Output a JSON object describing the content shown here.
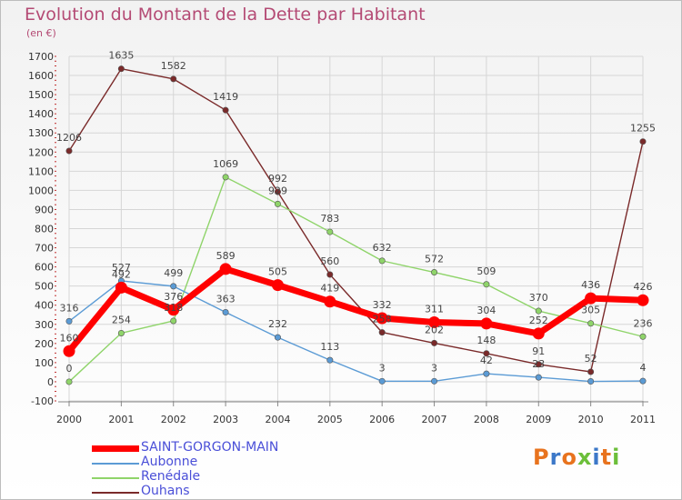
{
  "title": "Evolution du Montant de la Dette par Habitant",
  "subtitle": "(en €)",
  "logo": "Proxiti",
  "logo_colors": [
    "#e8731e",
    "#3c78c8",
    "#e8731e",
    "#6cbf3a",
    "#3c78c8",
    "#e8731e",
    "#6cbf3a"
  ],
  "chart_data": {
    "type": "line",
    "x": [
      "2000",
      "2001",
      "2002",
      "2003",
      "2004",
      "2005",
      "2006",
      "2007",
      "2008",
      "2009",
      "2010",
      "2011"
    ],
    "ylim": [
      -100,
      1700
    ],
    "yticks": [
      "-100",
      "0",
      "100",
      "200",
      "300",
      "400",
      "500",
      "600",
      "700",
      "800",
      "900",
      "1000",
      "1100",
      "1200",
      "1300",
      "1400",
      "1500",
      "1600",
      "1700"
    ],
    "grid": true,
    "legend_position": "bottom-left",
    "series": [
      {
        "name": "SAINT-GORGON-MAIN",
        "color": "#ff0000",
        "values": [
          160,
          492,
          376,
          589,
          505,
          419,
          332,
          311,
          304,
          252,
          436,
          426
        ],
        "labels": [
          "160",
          "492",
          "376",
          "589",
          "505",
          "419",
          "332",
          "311",
          "304",
          "252",
          "436",
          "426"
        ]
      },
      {
        "name": "Aubonne",
        "color": "#5b9bd5",
        "values": [
          316,
          527,
          499,
          363,
          232,
          113,
          3,
          3,
          42,
          23,
          2,
          4
        ],
        "labels": [
          "316",
          "527",
          "499",
          "363",
          "232",
          "113",
          "3",
          "3",
          "42",
          "23",
          "",
          "4"
        ]
      },
      {
        "name": "Renédale",
        "color": "#8fd46a",
        "values": [
          0,
          254,
          318,
          1069,
          929,
          783,
          632,
          572,
          509,
          370,
          305,
          236
        ],
        "labels": [
          "0",
          "254",
          "318",
          "1069",
          "929",
          "783",
          "632",
          "572",
          "509",
          "370",
          "305",
          "236"
        ]
      },
      {
        "name": "Ouhans",
        "color": "#7a2a2a",
        "values": [
          1206,
          1635,
          1582,
          1419,
          992,
          560,
          258,
          202,
          148,
          91,
          52,
          1255
        ],
        "labels": [
          "1206",
          "1635",
          "1582",
          "1419",
          "992",
          "560",
          "258",
          "202",
          "148",
          "91",
          "52",
          "1255"
        ]
      }
    ]
  }
}
